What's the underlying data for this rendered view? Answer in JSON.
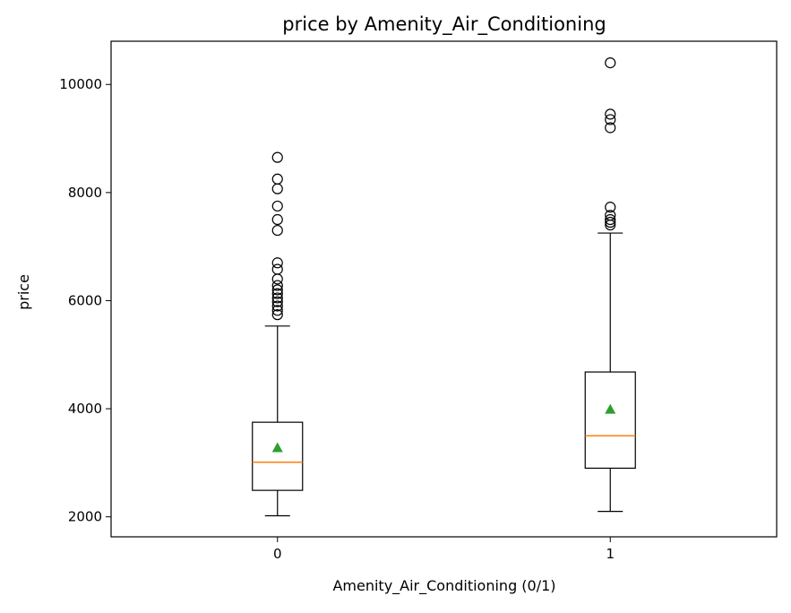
{
  "chart_data": {
    "type": "box",
    "title": "price by Amenity_Air_Conditioning",
    "xlabel": "Amenity_Air_Conditioning (0/1)",
    "ylabel": "price",
    "categories": [
      "0",
      "1"
    ],
    "yticks": [
      2000,
      4000,
      6000,
      8000,
      10000
    ],
    "ylim": [
      1630,
      10800
    ],
    "grid": false,
    "boxes": [
      {
        "category": "0",
        "whisker_low": 2020,
        "q1": 2490,
        "median": 3010,
        "q3": 3750,
        "whisker_high": 5530,
        "mean": 3280,
        "outliers": [
          5740,
          5820,
          5900,
          5980,
          6050,
          6130,
          6200,
          6280,
          6400,
          6580,
          6700,
          7300,
          7500,
          7750,
          8070,
          8250,
          8650
        ]
      },
      {
        "category": "1",
        "whisker_low": 2100,
        "q1": 2900,
        "median": 3500,
        "q3": 4680,
        "whisker_high": 7250,
        "mean": 3990,
        "outliers": [
          7400,
          7450,
          7500,
          7580,
          7730,
          9200,
          9350,
          9450,
          10400
        ]
      }
    ],
    "colors": {
      "box": "#000000",
      "median": "#ff7f0e",
      "mean": "#2ca02c",
      "outlier": "#000000"
    }
  }
}
